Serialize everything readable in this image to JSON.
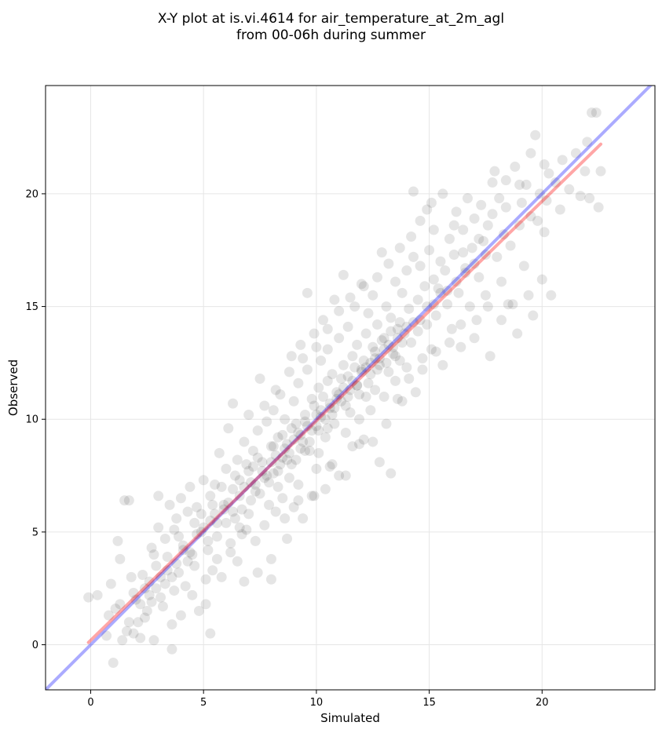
{
  "chart_data": {
    "type": "scatter",
    "title_line1": "X-Y plot at is.vi.4614 for air_temperature_at_2m_agl",
    "title_line2": "from 00-06h during summer",
    "xlabel": "Simulated",
    "ylabel": "Observed",
    "xlim": [
      -2.0,
      25.0
    ],
    "ylim": [
      -2.0,
      24.8
    ],
    "xticks": [
      0,
      5,
      10,
      15,
      20
    ],
    "yticks": [
      0,
      5,
      10,
      15,
      20
    ],
    "grid": true,
    "point_color": "#000000",
    "point_alpha": 0.1,
    "identity_line": {
      "x": [
        -2.0,
        25.0
      ],
      "y": [
        -2.0,
        25.0
      ],
      "color": "#0000ff",
      "alpha": 0.33
    },
    "fit_line": {
      "x": [
        -0.1,
        22.6
      ],
      "y": [
        0.1,
        22.2
      ],
      "color": "#ff0000",
      "alpha": 0.35
    },
    "points": [
      [
        -0.1,
        2.1
      ],
      [
        0.3,
        2.2
      ],
      [
        0.7,
        0.4
      ],
      [
        0.9,
        2.7
      ],
      [
        1.0,
        -0.8
      ],
      [
        1.2,
        4.6
      ],
      [
        1.3,
        3.8
      ],
      [
        1.3,
        1.8
      ],
      [
        1.5,
        6.4
      ],
      [
        1.6,
        0.6
      ],
      [
        1.7,
        6.4
      ],
      [
        1.8,
        3.0
      ],
      [
        2.0,
        2.0
      ],
      [
        2.1,
        1.0
      ],
      [
        2.2,
        0.3
      ],
      [
        2.3,
        3.1
      ],
      [
        2.4,
        2.5
      ],
      [
        2.5,
        1.5
      ],
      [
        2.6,
        2.8
      ],
      [
        2.7,
        4.3
      ],
      [
        2.8,
        0.2
      ],
      [
        2.9,
        3.5
      ],
      [
        3.0,
        5.2
      ],
      [
        3.0,
        6.6
      ],
      [
        3.1,
        2.1
      ],
      [
        3.2,
        1.7
      ],
      [
        3.3,
        4.7
      ],
      [
        3.4,
        3.9
      ],
      [
        3.5,
        6.2
      ],
      [
        3.6,
        0.9
      ],
      [
        3.6,
        -0.2
      ],
      [
        3.7,
        2.4
      ],
      [
        3.8,
        5.6
      ],
      [
        3.9,
        3.2
      ],
      [
        4.0,
        6.5
      ],
      [
        4.0,
        1.3
      ],
      [
        4.1,
        4.4
      ],
      [
        4.2,
        2.6
      ],
      [
        4.3,
        5.9
      ],
      [
        4.4,
        7.0
      ],
      [
        4.5,
        4.0
      ],
      [
        4.6,
        3.5
      ],
      [
        4.7,
        6.1
      ],
      [
        4.8,
        1.5
      ],
      [
        4.9,
        5.0
      ],
      [
        5.0,
        7.3
      ],
      [
        5.1,
        2.9
      ],
      [
        5.2,
        4.6
      ],
      [
        5.3,
        0.5
      ],
      [
        5.3,
        6.6
      ],
      [
        5.4,
        3.3
      ],
      [
        5.5,
        5.8
      ],
      [
        5.5,
        7.1
      ],
      [
        5.6,
        4.8
      ],
      [
        5.7,
        8.5
      ],
      [
        5.8,
        3.0
      ],
      [
        5.9,
        6.2
      ],
      [
        6.0,
        5.4
      ],
      [
        6.0,
        7.8
      ],
      [
        6.1,
        9.6
      ],
      [
        6.2,
        4.1
      ],
      [
        6.3,
        6.9
      ],
      [
        6.3,
        10.7
      ],
      [
        6.4,
        5.6
      ],
      [
        6.5,
        8.2
      ],
      [
        6.5,
        3.7
      ],
      [
        6.6,
        7.3
      ],
      [
        6.7,
        6.0
      ],
      [
        6.8,
        9.0
      ],
      [
        6.8,
        2.8
      ],
      [
        6.9,
        5.1
      ],
      [
        7.0,
        7.7
      ],
      [
        7.0,
        10.2
      ],
      [
        7.1,
        6.4
      ],
      [
        7.2,
        8.6
      ],
      [
        7.3,
        4.6
      ],
      [
        7.3,
        7.1
      ],
      [
        7.4,
        9.5
      ],
      [
        7.5,
        6.7
      ],
      [
        7.5,
        11.8
      ],
      [
        7.6,
        8.1
      ],
      [
        7.7,
        5.3
      ],
      [
        7.7,
        7.4
      ],
      [
        7.8,
        9.9
      ],
      [
        7.9,
        6.2
      ],
      [
        8.0,
        8.8
      ],
      [
        8.0,
        3.8
      ],
      [
        8.1,
        7.6
      ],
      [
        8.1,
        10.4
      ],
      [
        8.2,
        5.9
      ],
      [
        8.3,
        9.2
      ],
      [
        8.3,
        7.0
      ],
      [
        8.4,
        11.1
      ],
      [
        8.5,
        8.3
      ],
      [
        8.5,
        6.5
      ],
      [
        8.6,
        10.0
      ],
      [
        8.7,
        4.7
      ],
      [
        8.7,
        8.9
      ],
      [
        8.8,
        7.4
      ],
      [
        8.9,
        12.8
      ],
      [
        8.9,
        9.6
      ],
      [
        9.0,
        6.1
      ],
      [
        9.0,
        10.8
      ],
      [
        9.1,
        8.2
      ],
      [
        9.2,
        11.6
      ],
      [
        9.2,
        7.1
      ],
      [
        9.3,
        9.3
      ],
      [
        9.3,
        13.3
      ],
      [
        9.4,
        5.6
      ],
      [
        9.5,
        10.2
      ],
      [
        9.5,
        8.6
      ],
      [
        9.6,
        12.2
      ],
      [
        9.6,
        15.6
      ],
      [
        9.7,
        9.0
      ],
      [
        9.8,
        6.6
      ],
      [
        9.8,
        10.9
      ],
      [
        9.9,
        13.8
      ],
      [
        10.0,
        9.7
      ],
      [
        10.0,
        7.8
      ],
      [
        10.1,
        11.4
      ],
      [
        10.1,
        8.5
      ],
      [
        10.2,
        12.6
      ],
      [
        10.2,
        10.1
      ],
      [
        10.3,
        14.4
      ],
      [
        10.4,
        9.2
      ],
      [
        10.4,
        6.9
      ],
      [
        10.5,
        11.7
      ],
      [
        10.5,
        13.1
      ],
      [
        10.6,
        10.5
      ],
      [
        10.7,
        8.0
      ],
      [
        10.7,
        12.0
      ],
      [
        10.8,
        15.3
      ],
      [
        10.8,
        9.8
      ],
      [
        10.9,
        11.2
      ],
      [
        11.0,
        13.6
      ],
      [
        11.0,
        7.5
      ],
      [
        11.1,
        10.8
      ],
      [
        11.2,
        12.4
      ],
      [
        11.2,
        16.4
      ],
      [
        11.3,
        9.4
      ],
      [
        11.4,
        11.9
      ],
      [
        11.4,
        14.1
      ],
      [
        11.5,
        10.3
      ],
      [
        11.6,
        12.8
      ],
      [
        11.6,
        8.8
      ],
      [
        11.7,
        15.0
      ],
      [
        11.8,
        11.5
      ],
      [
        11.8,
        13.3
      ],
      [
        11.9,
        10.0
      ],
      [
        12.0,
        12.2
      ],
      [
        12.0,
        16.0
      ],
      [
        12.1,
        9.1
      ],
      [
        12.2,
        13.8
      ],
      [
        12.2,
        11.0
      ],
      [
        12.3,
        14.7
      ],
      [
        12.4,
        12.5
      ],
      [
        12.4,
        10.4
      ],
      [
        12.5,
        15.5
      ],
      [
        12.6,
        13.0
      ],
      [
        12.6,
        11.3
      ],
      [
        12.7,
        14.2
      ],
      [
        12.8,
        8.1
      ],
      [
        12.8,
        12.7
      ],
      [
        12.9,
        17.4
      ],
      [
        13.0,
        13.6
      ],
      [
        13.0,
        11.0
      ],
      [
        13.1,
        15.0
      ],
      [
        13.2,
        12.1
      ],
      [
        13.3,
        7.6
      ],
      [
        13.3,
        14.5
      ],
      [
        13.4,
        13.2
      ],
      [
        13.5,
        16.1
      ],
      [
        13.5,
        11.7
      ],
      [
        13.6,
        14.0
      ],
      [
        13.7,
        12.6
      ],
      [
        13.8,
        15.6
      ],
      [
        13.8,
        10.8
      ],
      [
        13.9,
        13.8
      ],
      [
        14.0,
        16.6
      ],
      [
        14.0,
        12.3
      ],
      [
        14.1,
        14.9
      ],
      [
        14.2,
        13.4
      ],
      [
        14.3,
        20.1
      ],
      [
        14.3,
        17.2
      ],
      [
        14.4,
        11.2
      ],
      [
        14.5,
        15.3
      ],
      [
        14.5,
        13.9
      ],
      [
        14.6,
        16.8
      ],
      [
        14.7,
        12.7
      ],
      [
        14.8,
        15.9
      ],
      [
        14.9,
        14.2
      ],
      [
        14.9,
        19.3
      ],
      [
        15.0,
        17.5
      ],
      [
        15.1,
        13.1
      ],
      [
        15.2,
        16.2
      ],
      [
        15.2,
        18.4
      ],
      [
        15.3,
        14.6
      ],
      [
        15.4,
        15.8
      ],
      [
        15.5,
        17.0
      ],
      [
        15.6,
        12.4
      ],
      [
        15.7,
        16.6
      ],
      [
        15.8,
        15.1
      ],
      [
        15.9,
        18.0
      ],
      [
        16.0,
        14.0
      ],
      [
        16.1,
        17.3
      ],
      [
        16.2,
        19.2
      ],
      [
        16.3,
        15.6
      ],
      [
        16.4,
        13.2
      ],
      [
        16.5,
        18.4
      ],
      [
        16.6,
        16.7
      ],
      [
        16.7,
        19.8
      ],
      [
        16.8,
        15.0
      ],
      [
        16.9,
        17.6
      ],
      [
        17.0,
        18.9
      ],
      [
        17.1,
        14.4
      ],
      [
        17.2,
        16.3
      ],
      [
        17.3,
        19.5
      ],
      [
        17.4,
        17.9
      ],
      [
        17.5,
        15.5
      ],
      [
        17.6,
        18.6
      ],
      [
        17.7,
        12.8
      ],
      [
        17.8,
        20.5
      ],
      [
        17.9,
        21.0
      ],
      [
        18.0,
        17.2
      ],
      [
        18.1,
        19.8
      ],
      [
        18.2,
        16.1
      ],
      [
        18.3,
        18.2
      ],
      [
        18.4,
        20.6
      ],
      [
        18.5,
        15.1
      ],
      [
        18.6,
        17.7
      ],
      [
        18.8,
        21.2
      ],
      [
        18.9,
        13.8
      ],
      [
        19.0,
        18.6
      ],
      [
        19.1,
        19.6
      ],
      [
        19.2,
        16.8
      ],
      [
        19.3,
        20.4
      ],
      [
        19.4,
        15.5
      ],
      [
        19.5,
        21.8
      ],
      [
        19.6,
        14.6
      ],
      [
        19.7,
        22.6
      ],
      [
        19.8,
        18.8
      ],
      [
        19.9,
        20.0
      ],
      [
        20.0,
        16.2
      ],
      [
        20.1,
        18.3
      ],
      [
        20.2,
        19.7
      ],
      [
        20.3,
        20.9
      ],
      [
        20.4,
        15.5
      ],
      [
        20.6,
        20.5
      ],
      [
        20.8,
        19.3
      ],
      [
        20.9,
        21.5
      ],
      [
        21.2,
        20.2
      ],
      [
        21.5,
        21.8
      ],
      [
        21.7,
        19.9
      ],
      [
        21.9,
        21.0
      ],
      [
        22.0,
        22.3
      ],
      [
        22.1,
        19.8
      ],
      [
        22.2,
        23.6
      ],
      [
        22.4,
        23.6
      ],
      [
        22.5,
        19.4
      ],
      [
        22.6,
        21.0
      ],
      [
        1.9,
        2.3
      ],
      [
        2.2,
        1.8
      ],
      [
        2.6,
        2.2
      ],
      [
        3.1,
        3.0
      ],
      [
        3.4,
        3.3
      ],
      [
        3.8,
        3.6
      ],
      [
        4.1,
        4.2
      ],
      [
        4.4,
        4.1
      ],
      [
        4.7,
        4.9
      ],
      [
        5.0,
        5.2
      ],
      [
        5.3,
        5.5
      ],
      [
        5.6,
        5.4
      ],
      [
        5.9,
        6.0
      ],
      [
        6.1,
        6.3
      ],
      [
        6.3,
        5.9
      ],
      [
        6.6,
        6.6
      ],
      [
        6.8,
        7.0
      ],
      [
        7.1,
        7.2
      ],
      [
        7.3,
        6.8
      ],
      [
        7.6,
        7.7
      ],
      [
        7.8,
        7.5
      ],
      [
        8.0,
        8.1
      ],
      [
        8.2,
        8.4
      ],
      [
        8.4,
        8.0
      ],
      [
        8.6,
        8.7
      ],
      [
        8.8,
        8.5
      ],
      [
        9.0,
        9.1
      ],
      [
        9.2,
        9.4
      ],
      [
        9.4,
        9.0
      ],
      [
        9.6,
        9.7
      ],
      [
        9.8,
        9.5
      ],
      [
        10.0,
        10.2
      ],
      [
        10.2,
        10.4
      ],
      [
        10.4,
        10.0
      ],
      [
        10.6,
        10.7
      ],
      [
        10.8,
        10.5
      ],
      [
        11.0,
        11.1
      ],
      [
        11.2,
        11.4
      ],
      [
        11.4,
        11.0
      ],
      [
        11.6,
        11.7
      ],
      [
        11.8,
        11.5
      ],
      [
        12.0,
        12.1
      ],
      [
        12.2,
        12.3
      ],
      [
        12.4,
        12.0
      ],
      [
        12.6,
        12.7
      ],
      [
        12.8,
        12.4
      ],
      [
        13.0,
        13.1
      ],
      [
        13.2,
        13.3
      ],
      [
        13.4,
        12.9
      ],
      [
        13.6,
        13.6
      ],
      [
        13.8,
        13.4
      ],
      [
        14.0,
        14.1
      ],
      [
        14.3,
        14.3
      ],
      [
        14.6,
        14.4
      ],
      [
        14.9,
        15.0
      ],
      [
        15.2,
        15.1
      ],
      [
        15.5,
        15.6
      ],
      [
        15.8,
        15.7
      ],
      [
        16.2,
        16.1
      ],
      [
        16.6,
        16.5
      ],
      [
        17.0,
        16.9
      ],
      [
        17.5,
        17.3
      ],
      [
        7.2,
        7.9
      ],
      [
        7.4,
        8.3
      ],
      [
        7.9,
        7.2
      ],
      [
        8.1,
        8.8
      ],
      [
        8.3,
        7.7
      ],
      [
        8.5,
        9.3
      ],
      [
        8.7,
        8.2
      ],
      [
        8.9,
        8.0
      ],
      [
        9.1,
        9.8
      ],
      [
        9.3,
        8.7
      ],
      [
        9.5,
        9.9
      ],
      [
        9.7,
        8.6
      ],
      [
        9.9,
        10.6
      ],
      [
        10.1,
        9.5
      ],
      [
        10.3,
        11.0
      ],
      [
        10.5,
        9.6
      ],
      [
        10.7,
        10.2
      ],
      [
        10.9,
        10.9
      ],
      [
        11.1,
        11.8
      ],
      [
        11.3,
        10.6
      ],
      [
        11.5,
        11.3
      ],
      [
        11.7,
        12.3
      ],
      [
        11.9,
        11.1
      ],
      [
        12.1,
        12.6
      ],
      [
        12.3,
        11.6
      ],
      [
        12.5,
        13.2
      ],
      [
        12.7,
        12.2
      ],
      [
        12.9,
        13.5
      ],
      [
        13.1,
        12.5
      ],
      [
        13.3,
        13.9
      ],
      [
        13.5,
        12.8
      ],
      [
        13.7,
        14.3
      ],
      [
        6.4,
        7.5
      ],
      [
        6.6,
        5.2
      ],
      [
        6.9,
        8.0
      ],
      [
        7.0,
        5.8
      ],
      [
        5.8,
        7.0
      ],
      [
        5.4,
        6.2
      ],
      [
        5.2,
        4.2
      ],
      [
        4.9,
        5.8
      ],
      [
        4.6,
        5.4
      ],
      [
        4.3,
        3.7
      ],
      [
        3.9,
        4.8
      ],
      [
        3.6,
        3.0
      ],
      [
        3.3,
        2.7
      ],
      [
        2.9,
        2.5
      ],
      [
        2.7,
        1.9
      ],
      [
        2.4,
        1.2
      ],
      [
        1.7,
        1.0
      ],
      [
        1.4,
        0.2
      ],
      [
        1.1,
        1.6
      ],
      [
        0.8,
        1.3
      ],
      [
        1.9,
        0.5
      ],
      [
        2.8,
        4.0
      ],
      [
        3.7,
        5.1
      ],
      [
        4.5,
        2.2
      ],
      [
        5.1,
        1.8
      ],
      [
        5.6,
        3.8
      ],
      [
        6.2,
        4.5
      ],
      [
        6.7,
        4.9
      ],
      [
        7.4,
        3.2
      ],
      [
        8.0,
        2.9
      ],
      [
        8.6,
        5.6
      ],
      [
        9.2,
        6.4
      ],
      [
        9.9,
        6.6
      ],
      [
        10.6,
        7.9
      ],
      [
        11.3,
        7.5
      ],
      [
        11.9,
        8.9
      ],
      [
        12.5,
        9.0
      ],
      [
        13.1,
        9.8
      ],
      [
        13.6,
        10.9
      ],
      [
        14.1,
        11.8
      ],
      [
        14.7,
        12.2
      ],
      [
        15.3,
        13.0
      ],
      [
        15.9,
        13.4
      ],
      [
        16.4,
        14.2
      ],
      [
        17.0,
        13.6
      ],
      [
        17.6,
        15.0
      ],
      [
        18.2,
        14.4
      ],
      [
        18.7,
        15.1
      ],
      [
        7.7,
        10.6
      ],
      [
        8.2,
        11.3
      ],
      [
        8.8,
        12.1
      ],
      [
        9.4,
        12.7
      ],
      [
        10.0,
        13.2
      ],
      [
        10.5,
        14.0
      ],
      [
        11.0,
        14.8
      ],
      [
        11.5,
        15.4
      ],
      [
        12.1,
        15.9
      ],
      [
        12.7,
        16.3
      ],
      [
        13.2,
        16.9
      ],
      [
        13.7,
        17.6
      ],
      [
        14.2,
        18.1
      ],
      [
        14.6,
        18.8
      ],
      [
        15.1,
        19.6
      ],
      [
        15.6,
        20.0
      ],
      [
        16.1,
        18.6
      ],
      [
        16.5,
        17.4
      ],
      [
        17.2,
        18.0
      ],
      [
        17.8,
        19.1
      ],
      [
        18.4,
        19.4
      ],
      [
        19.0,
        20.4
      ],
      [
        19.5,
        19.0
      ],
      [
        20.1,
        21.3
      ]
    ]
  }
}
